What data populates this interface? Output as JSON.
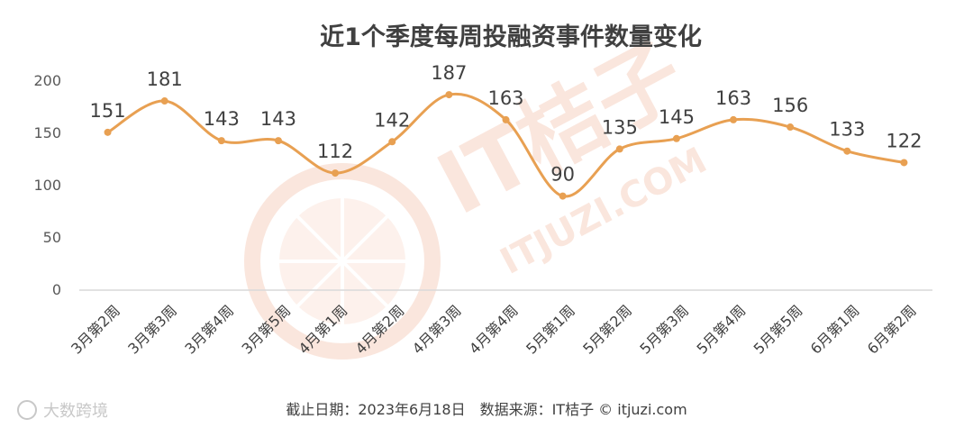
{
  "chart_data": {
    "type": "line",
    "title": "近1个季度每周投融资事件数量变化",
    "categories": [
      "3月第2周",
      "3月第3周",
      "3月第4周",
      "3月第5周",
      "4月第1周",
      "4月第2周",
      "4月第3周",
      "4月第4周",
      "5月第1周",
      "5月第2周",
      "5月第3周",
      "5月第4周",
      "5月第5周",
      "6月第1周",
      "6月第2周"
    ],
    "values": [
      151,
      181,
      143,
      143,
      112,
      142,
      187,
      163,
      90,
      135,
      145,
      163,
      156,
      133,
      122
    ],
    "y_ticks": [
      "0",
      "50",
      "100",
      "150",
      "200"
    ],
    "ylim": [
      0,
      200
    ],
    "grid": false,
    "smooth": true,
    "line_color": "#e8a052",
    "marker_color": "#e8a052"
  },
  "footer": "截止日期：2023年6月18日　数据来源：IT桔子 © itjuzi.com",
  "watermark": {
    "brand": "IT桔子",
    "url": "ITJUZI.COM",
    "color": "#f6d2c2"
  },
  "corner_logo": {
    "text": "大数跨境"
  }
}
